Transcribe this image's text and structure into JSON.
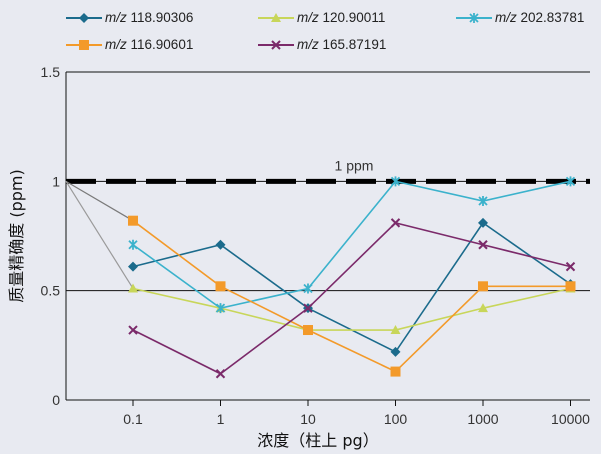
{
  "chart_data": {
    "type": "line",
    "title": "",
    "xlabel": "浓度（柱上 pg）",
    "ylabel": "质量精确度 (ppm)",
    "categories": [
      "0.1",
      "1",
      "10",
      "100",
      "1000",
      "10000"
    ],
    "yticks": [
      "0",
      "0.5",
      "1",
      "1.5"
    ],
    "ylim": [
      0,
      1.5
    ],
    "reference_line": {
      "y": 1.0,
      "label": "1 ppm",
      "color": "#000000"
    },
    "legend_position": "top",
    "series": [
      {
        "name": "118.90306",
        "prefix": "m/z",
        "color": "#1b6b8c",
        "marker": "diamond",
        "values": [
          0.61,
          0.71,
          0.42,
          0.22,
          0.81,
          0.53
        ]
      },
      {
        "name": "120.90011",
        "prefix": "m/z",
        "color": "#c8d65a",
        "marker": "triangle",
        "values": [
          0.51,
          0.42,
          0.32,
          0.32,
          0.42,
          0.51
        ]
      },
      {
        "name": "202.83781",
        "prefix": "m/z",
        "color": "#3bb2cc",
        "marker": "asterisk",
        "values": [
          0.71,
          0.42,
          0.51,
          1.0,
          0.91,
          1.0
        ]
      },
      {
        "name": "116.90601",
        "prefix": "m/z",
        "color": "#f39a2a",
        "marker": "square",
        "values": [
          0.82,
          0.52,
          0.32,
          0.13,
          0.52,
          0.52
        ]
      },
      {
        "name": "165.87191",
        "prefix": "m/z",
        "color": "#7b2a6a",
        "marker": "x",
        "values": [
          0.32,
          0.12,
          0.42,
          0.81,
          0.71,
          0.61
        ]
      }
    ]
  }
}
